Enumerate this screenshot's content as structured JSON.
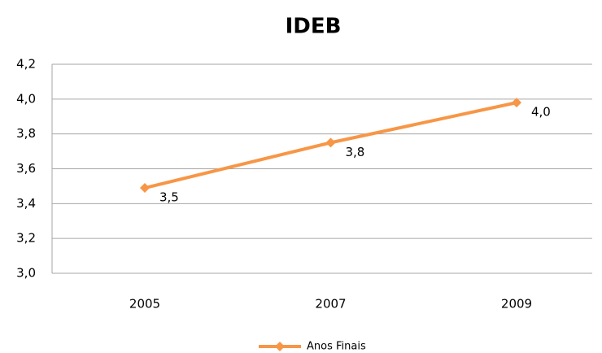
{
  "chart_data": {
    "type": "line",
    "title": "IDEB",
    "categories": [
      "2005",
      "2007",
      "2009"
    ],
    "series": [
      {
        "name": "Anos Finais",
        "color": "#f79646",
        "values": [
          3.49,
          3.75,
          3.98
        ],
        "value_labels": [
          "3,5",
          "3,8",
          "4,0"
        ]
      }
    ],
    "ylim": [
      3.0,
      4.2
    ],
    "yticks": [
      {
        "value": 3.0,
        "label": "3,0"
      },
      {
        "value": 3.2,
        "label": "3,2"
      },
      {
        "value": 3.4,
        "label": "3,4"
      },
      {
        "value": 3.6,
        "label": "3,6"
      },
      {
        "value": 3.8,
        "label": "3,8"
      },
      {
        "value": 4.0,
        "label": "4,0"
      },
      {
        "value": 4.2,
        "label": "4,2"
      }
    ],
    "grid": true,
    "legend": "bottom"
  }
}
